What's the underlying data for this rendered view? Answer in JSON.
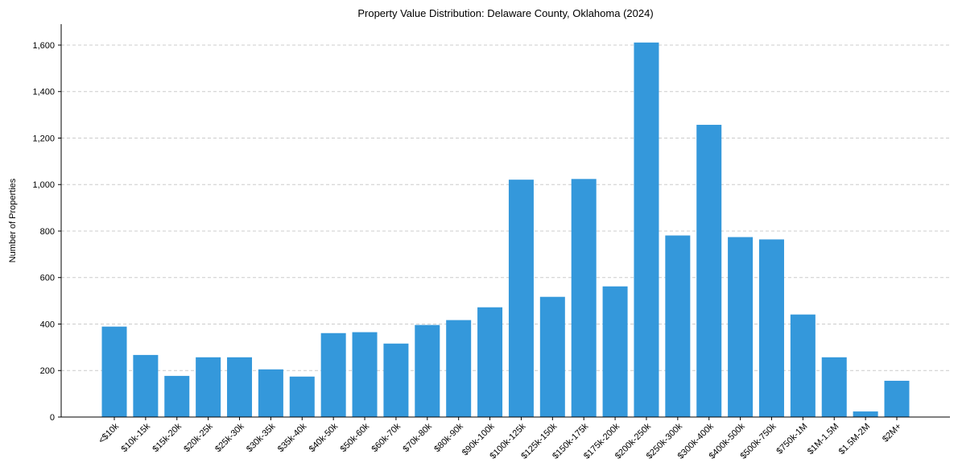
{
  "chart_data": {
    "type": "bar",
    "title": "Property Value Distribution: Delaware County, Oklahoma (2024)",
    "xlabel": "",
    "ylabel": "Number of Properties",
    "ylim": [
      0,
      1690
    ],
    "yticks": [
      0,
      200,
      400,
      600,
      800,
      1000,
      1200,
      1400,
      1600
    ],
    "ytick_labels": [
      "0",
      "200",
      "400",
      "600",
      "800",
      "1,000",
      "1,200",
      "1,400",
      "1,600"
    ],
    "grid": "y-dashed",
    "bar_color": "#3498db",
    "categories": [
      "<$10k",
      "$10k-15k",
      "$15k-20k",
      "$20k-25k",
      "$25k-30k",
      "$30k-35k",
      "$35k-40k",
      "$40k-50k",
      "$50k-60k",
      "$60k-70k",
      "$70k-80k",
      "$80k-90k",
      "$90k-100k",
      "$100k-125k",
      "$125k-150k",
      "$150k-175k",
      "$175k-200k",
      "$200k-250k",
      "$250k-300k",
      "$300k-400k",
      "$400k-500k",
      "$500k-750k",
      "$750k-1M",
      "$1M-1.5M",
      "$1.5M-2M",
      "$2M+"
    ],
    "values": [
      389,
      267,
      177,
      257,
      257,
      205,
      174,
      361,
      365,
      316,
      396,
      417,
      472,
      1021,
      517,
      1024,
      562,
      1611,
      781,
      1257,
      774,
      764,
      441,
      257,
      24,
      156
    ]
  }
}
